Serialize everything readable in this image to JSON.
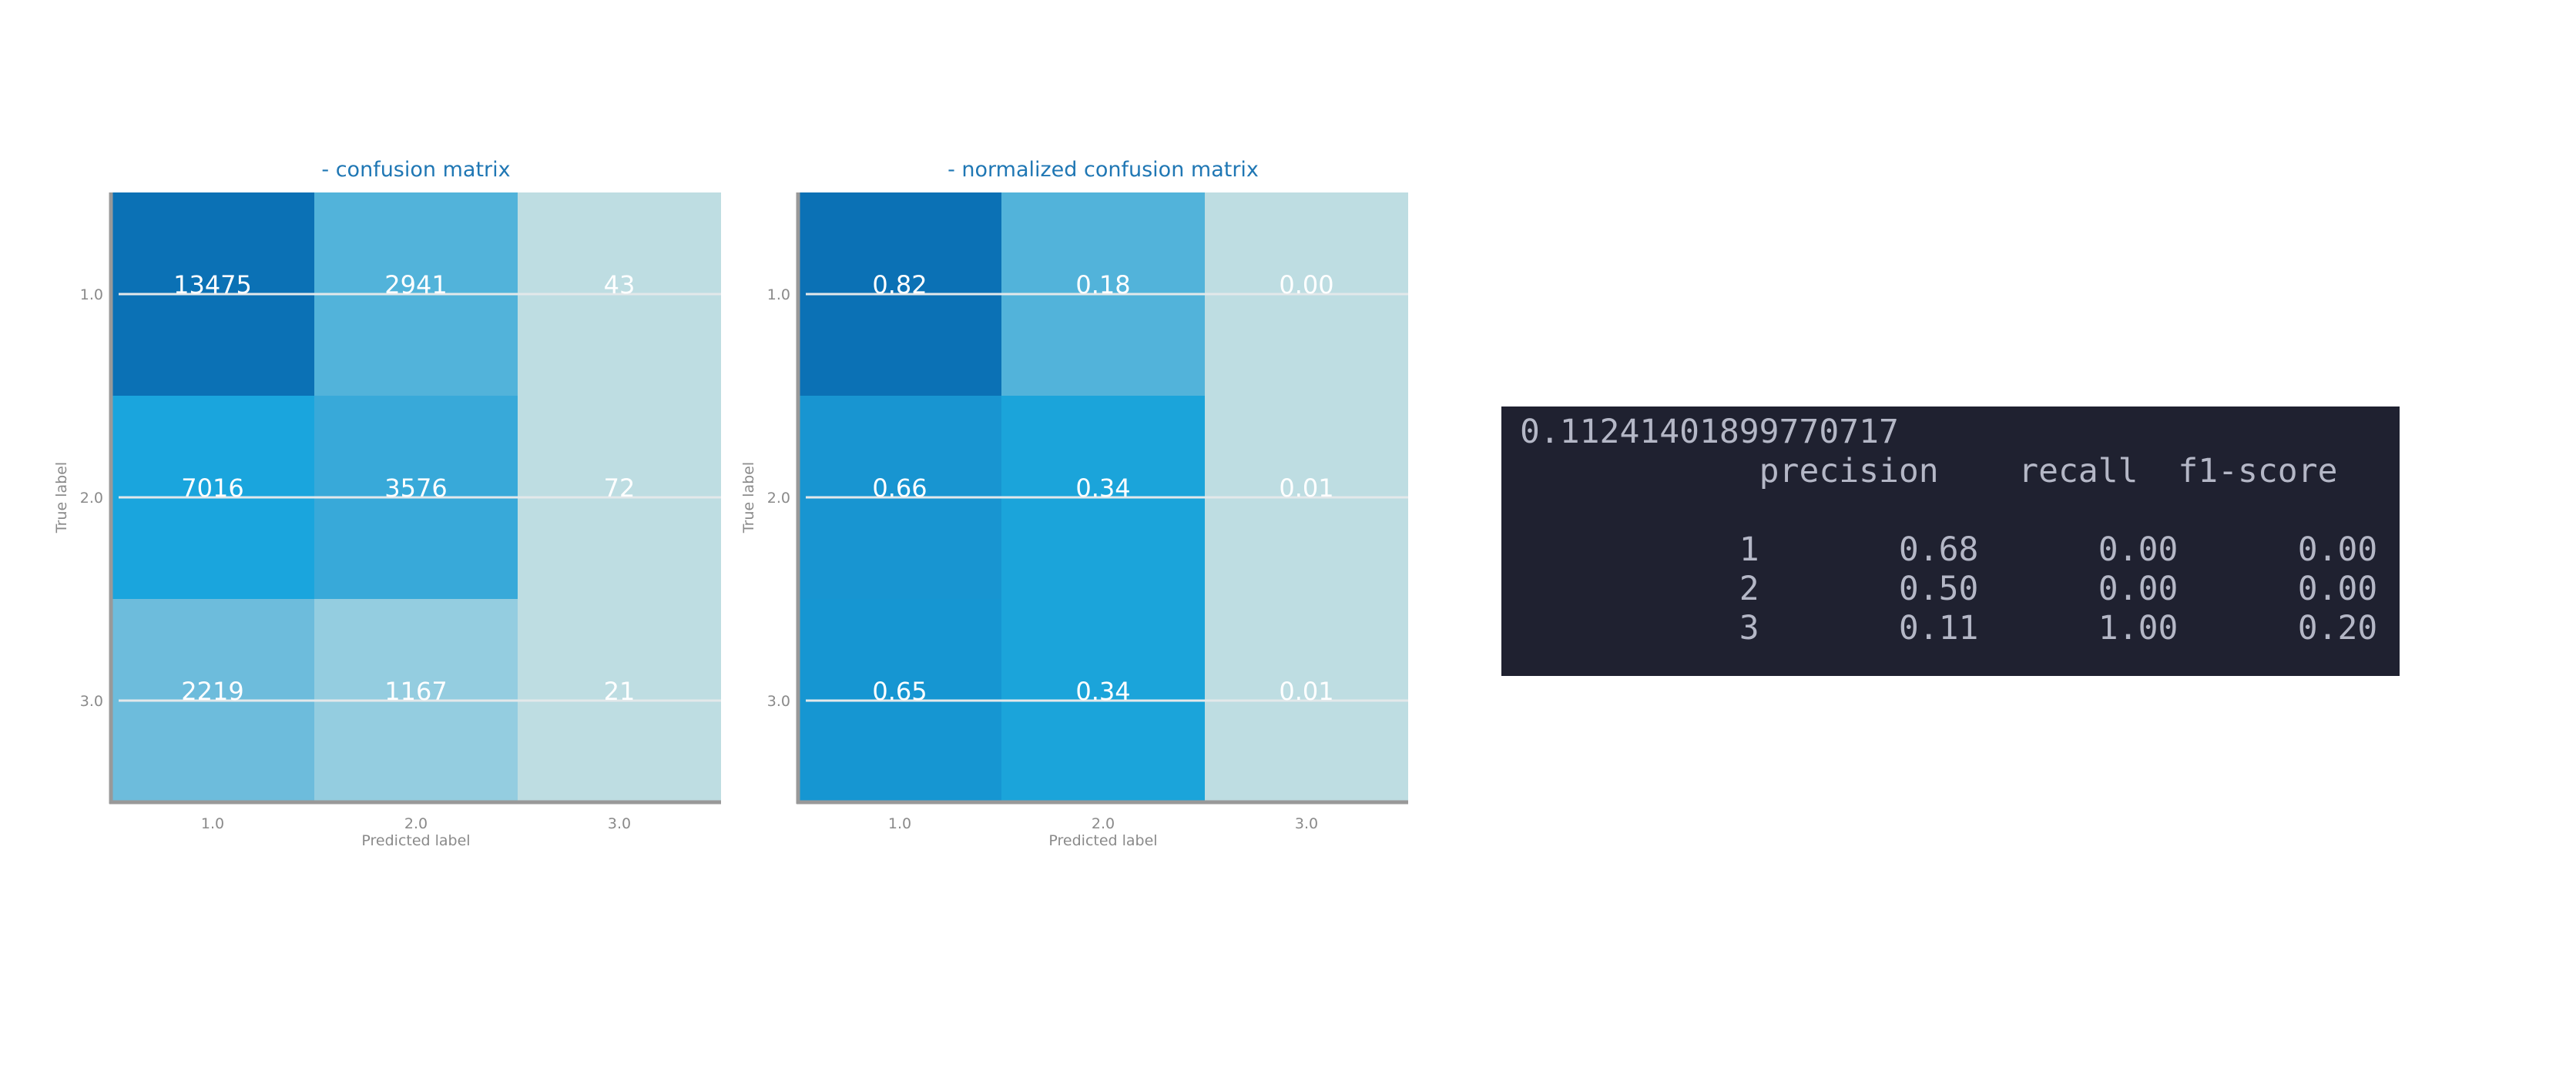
{
  "chart_data": [
    {
      "type": "heatmap",
      "title": "- confusion matrix",
      "xlabel": "Predicted label",
      "ylabel": "True label",
      "x_categories": [
        "1.0",
        "2.0",
        "3.0"
      ],
      "y_categories": [
        "1.0",
        "2.0",
        "3.0"
      ],
      "values": [
        [
          13475,
          2941,
          43
        ],
        [
          7016,
          3576,
          72
        ],
        [
          2219,
          1167,
          21
        ]
      ],
      "cell_labels": [
        [
          "13475",
          "2941",
          "43"
        ],
        [
          "7016",
          "3576",
          "72"
        ],
        [
          "2219",
          "1167",
          "21"
        ]
      ],
      "colors": [
        [
          "#0b71b5",
          "#52b3da",
          "#bedde2"
        ],
        [
          "#1aa5dd",
          "#38a9d9",
          "#bedde2"
        ],
        [
          "#6dbcdc",
          "#94cde0",
          "#bedde2"
        ]
      ],
      "grid": true
    },
    {
      "type": "heatmap",
      "title": "- normalized confusion matrix",
      "xlabel": "Predicted label",
      "ylabel": "True label",
      "x_categories": [
        "1.0",
        "2.0",
        "3.0"
      ],
      "y_categories": [
        "1.0",
        "2.0",
        "3.0"
      ],
      "values": [
        [
          0.82,
          0.18,
          0.0
        ],
        [
          0.66,
          0.34,
          0.01
        ],
        [
          0.65,
          0.34,
          0.01
        ]
      ],
      "cell_labels": [
        [
          "0.82",
          "0.18",
          "0.00"
        ],
        [
          "0.66",
          "0.34",
          "0.01"
        ],
        [
          "0.65",
          "0.34",
          "0.01"
        ]
      ],
      "colors": [
        [
          "#0b71b5",
          "#52b3da",
          "#bedde2"
        ],
        [
          "#1895d1",
          "#1ba4da",
          "#bedde2"
        ],
        [
          "#1696d2",
          "#1ba4da",
          "#bedde2"
        ]
      ],
      "grid": true
    }
  ],
  "report": {
    "score": "0.11241401899770717",
    "headers": [
      "precision",
      "recall",
      "f1-score"
    ],
    "rows": [
      {
        "label": "1",
        "values": [
          "0.68",
          "0.00",
          "0.00"
        ]
      },
      {
        "label": "2",
        "values": [
          "0.50",
          "0.00",
          "0.00"
        ]
      },
      {
        "label": "3",
        "values": [
          "0.11",
          "1.00",
          "0.20"
        ]
      }
    ]
  },
  "colors": {
    "title": "#1f77b4",
    "axis_text": "#8a8a8a",
    "cell_text": "#ffffff",
    "report_bg": "#1f2130",
    "report_text": "#b4b7c6"
  }
}
